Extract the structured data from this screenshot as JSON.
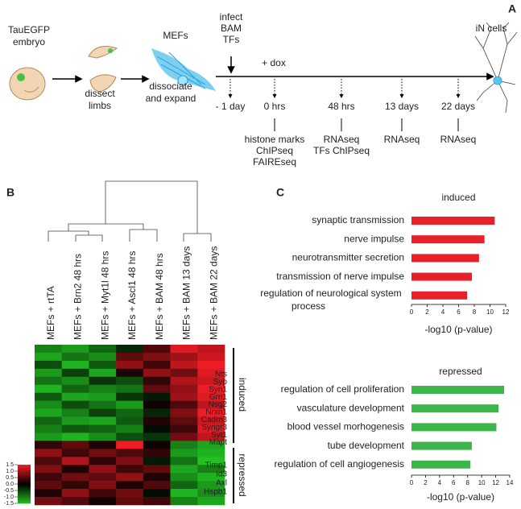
{
  "panel_a": {
    "label": "A",
    "embryo": [
      "TauEGFP",
      "embryo"
    ],
    "step1": [
      "dissect",
      "limbs"
    ],
    "step2": [
      "dissociate",
      "and expand"
    ],
    "mefs": "MEFs",
    "infect": [
      "infect",
      "BAM",
      "TFs"
    ],
    "dox": "+ dox",
    "neurons": "iN cells",
    "timepoints": [
      {
        "time": "- 1 day"
      },
      {
        "time": "0 hrs",
        "assays": [
          "histone marks",
          "ChIPseq",
          "FAIREseq"
        ]
      },
      {
        "time": "48 hrs",
        "assays": [
          "RNAseq",
          "TFs ChIPseq"
        ]
      },
      {
        "time": "13 days",
        "assays": [
          "RNAseq"
        ]
      },
      {
        "time": "22 days",
        "assays": [
          "RNAseq"
        ]
      }
    ]
  },
  "chart_data": [
    {
      "type": "heatmap",
      "label": "B",
      "columns": [
        "MEFs + rtTA",
        "MEFs + Brn2 48 hrs",
        "MEFs + Myt1l 48 hrs",
        "MEFs + Ascl1 48 hrs",
        "MEFs + BAM 48 hrs",
        "MEFs + BAM 13 days",
        "MEFs + BAM 22 days"
      ],
      "values": [
        [
          -1.0,
          -1.2,
          -0.8,
          -0.3,
          0.5,
          1.4,
          1.2
        ],
        [
          -1.3,
          -0.9,
          -1.1,
          0.6,
          0.8,
          1.0,
          1.3
        ],
        [
          -0.6,
          -1.4,
          -0.7,
          0.9,
          0.4,
          1.2,
          1.5
        ],
        [
          -1.2,
          -0.5,
          -1.3,
          0.2,
          0.9,
          0.7,
          1.4
        ],
        [
          -0.9,
          -1.1,
          -0.4,
          -0.6,
          0.3,
          1.1,
          1.3
        ],
        [
          -1.4,
          -0.8,
          -1.0,
          -0.9,
          0.6,
          0.9,
          1.5
        ],
        [
          -0.7,
          -1.3,
          -1.2,
          -0.4,
          -0.2,
          1.0,
          1.4
        ],
        [
          -1.1,
          -0.6,
          -0.9,
          -1.2,
          0.1,
          0.5,
          1.2
        ],
        [
          -1.3,
          -1.0,
          -0.5,
          -0.8,
          -0.3,
          0.8,
          1.5
        ],
        [
          -0.8,
          -1.2,
          -1.3,
          -0.7,
          0.2,
          0.6,
          1.3
        ],
        [
          -1.0,
          -0.7,
          -0.8,
          -1.0,
          -0.1,
          0.4,
          1.4
        ],
        [
          -1.2,
          -1.4,
          -1.1,
          -0.6,
          -0.4,
          0.7,
          1.2
        ],
        [
          0.3,
          0.6,
          0.2,
          1.5,
          0.1,
          -1.0,
          -1.3
        ],
        [
          0.9,
          0.4,
          0.7,
          0.5,
          0.3,
          -1.2,
          -1.4
        ],
        [
          0.5,
          1.1,
          0.3,
          0.8,
          -0.2,
          -0.9,
          -1.5
        ],
        [
          0.8,
          0.2,
          0.9,
          0.4,
          0.6,
          -1.3,
          -1.0
        ],
        [
          0.4,
          0.7,
          0.6,
          0.9,
          0.2,
          -1.1,
          -1.4
        ],
        [
          0.6,
          0.3,
          0.8,
          0.2,
          0.5,
          -0.8,
          -1.2
        ],
        [
          0.2,
          0.9,
          0.4,
          0.7,
          -0.1,
          -1.4,
          -1.1
        ],
        [
          0.7,
          0.5,
          0.1,
          0.6,
          0.4,
          -1.0,
          -1.3
        ]
      ],
      "groups": [
        {
          "name": "induced",
          "genes": [
            "Nts",
            "Syp",
            "Syn1",
            "Grn1",
            "Nsg2",
            "Nrxn1",
            "Cadm3",
            "Syngr3",
            "Syt1",
            "Mapt"
          ]
        },
        {
          "name": "repressed",
          "genes": [
            "Timp1",
            "Id3",
            "Axl",
            "Hspb1"
          ]
        }
      ],
      "clim": [
        -1.5,
        1.5
      ],
      "colorbar_ticks": [
        {
          "value": 1.5,
          "label": "1.5"
        },
        {
          "value": 1,
          "label": "1.0"
        },
        {
          "value": 0.5,
          "label": "0.5"
        },
        {
          "value": 0,
          "label": "0.0"
        },
        {
          "value": -0.5,
          "label": "-0.5"
        },
        {
          "value": -1,
          "label": "-1.0"
        },
        {
          "value": -1.5,
          "label": "-1.5"
        }
      ],
      "colors": [
        "#22c022",
        "#000000",
        "#ee1c24"
      ]
    },
    {
      "type": "bar",
      "label": "C",
      "title": "induced",
      "categories": [
        "synaptic transmission",
        "nerve impulse",
        "neurotransmitter secretion",
        "transmission of nerve impulse",
        "regulation of neurological system process"
      ],
      "values": [
        10.6,
        9.3,
        8.6,
        7.7,
        7.1
      ],
      "color": "#e8202a",
      "xlim": [
        0,
        12
      ],
      "xticks": [
        0,
        2,
        4,
        6,
        8,
        10,
        12
      ],
      "xlabel": "-log10 (p-value)"
    },
    {
      "type": "bar",
      "title": "repressed",
      "categories": [
        "regulation of cell proliferation",
        "vasculature development",
        "blood vessel morhogenesis",
        "tube development",
        "regulation of cell angiogenesis"
      ],
      "values": [
        13.2,
        12.4,
        12.1,
        8.6,
        8.4
      ],
      "color": "#3cb54a",
      "xlim": [
        0,
        14
      ],
      "xticks": [
        0,
        2,
        4,
        6,
        8,
        10,
        12,
        14
      ],
      "xlabel": "-log10 (p-value)"
    }
  ]
}
